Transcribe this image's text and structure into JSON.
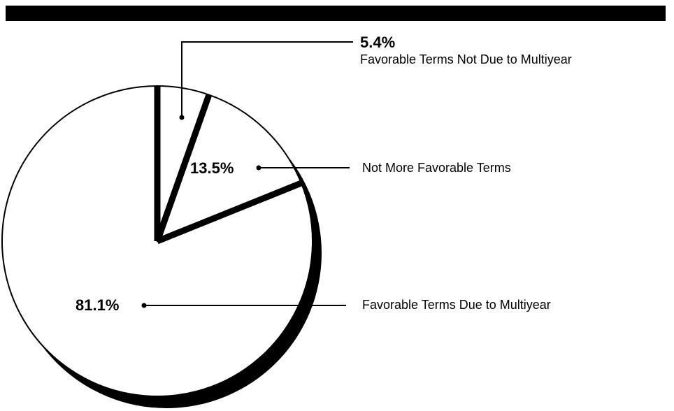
{
  "chart_data": {
    "type": "pie",
    "categories": [
      "Favorable Terms Not Due to Multiyear",
      "Not More Favorable Terms",
      "Favorable Terms Due to Multiyear"
    ],
    "values": [
      5.4,
      13.5,
      81.1
    ],
    "value_labels": [
      "5.4%",
      "13.5%",
      "81.1%"
    ]
  }
}
